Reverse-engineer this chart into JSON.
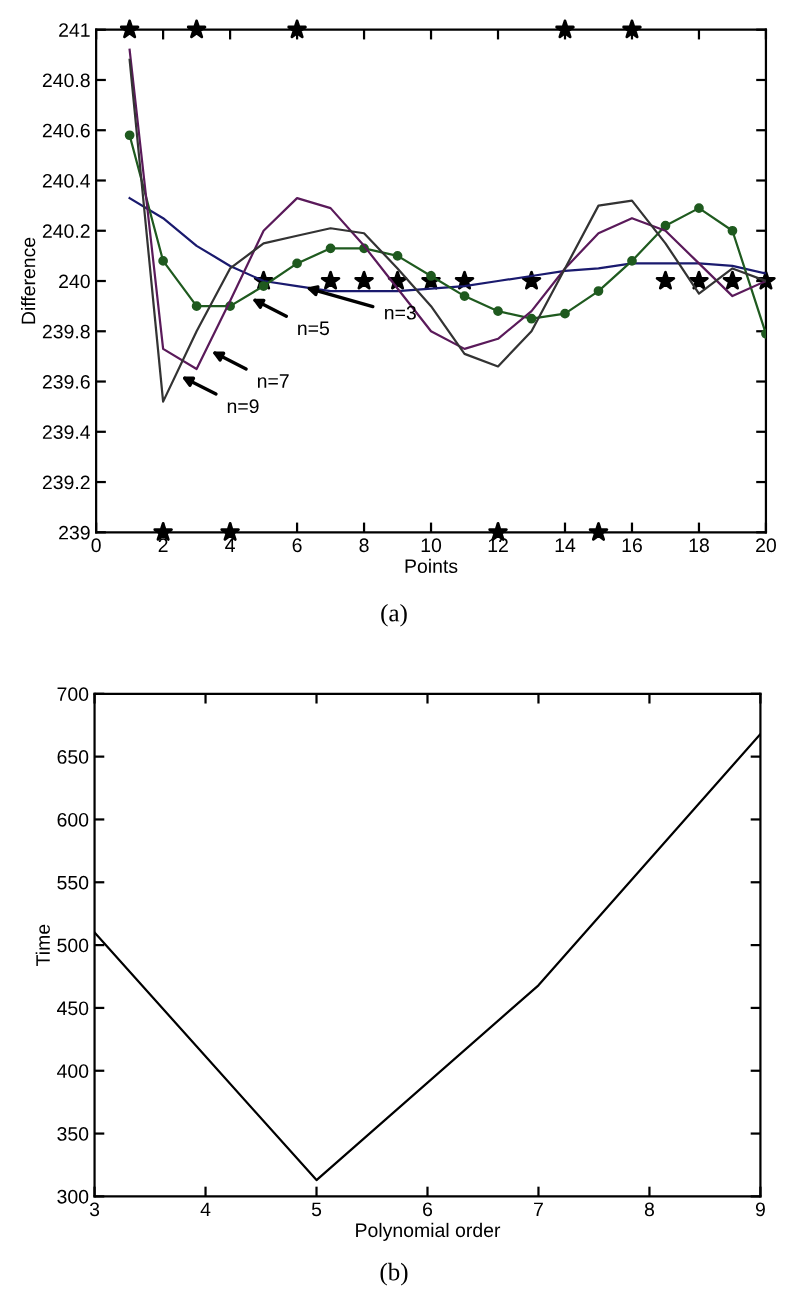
{
  "chart_data": [
    {
      "type": "line",
      "xlabel": "Points",
      "ylabel": "Difference",
      "xlim": [
        0,
        20
      ],
      "ylim": [
        239,
        241
      ],
      "xticks": [
        0,
        2,
        4,
        6,
        8,
        10,
        12,
        14,
        16,
        18,
        {
          "value": 20,
          "label": "20"
        }
      ],
      "yticks": [
        239,
        239.2,
        239.4,
        239.6,
        239.8,
        240,
        240.2,
        240.4,
        240.6,
        240.8,
        241
      ],
      "grid": false,
      "legend": false,
      "series": [
        {
          "type": "scatter",
          "color": "#000000",
          "marker": "star",
          "x": [
            1,
            3,
            6,
            14,
            16,
            2,
            4,
            12,
            15,
            5,
            7,
            8,
            9,
            10,
            11,
            13,
            17,
            18,
            19,
            20
          ],
          "values": [
            241,
            241,
            241,
            241,
            241,
            239,
            239,
            239,
            239,
            240,
            240,
            240,
            240,
            240,
            240,
            240,
            240,
            240,
            240,
            240
          ]
        },
        {
          "color": "#1a1a6e",
          "marker": "none",
          "x": [
            1,
            2,
            3,
            4,
            5,
            6,
            7,
            8,
            9,
            10,
            11,
            12,
            13,
            14,
            15,
            16,
            17,
            18,
            19,
            20
          ],
          "values": [
            240.33,
            240.25,
            240.14,
            240.06,
            240.0,
            239.98,
            239.96,
            239.96,
            239.96,
            239.97,
            239.98,
            240.0,
            240.02,
            240.04,
            240.05,
            240.07,
            240.07,
            240.07,
            240.06,
            240.03
          ]
        },
        {
          "color": "#1f5a1f",
          "marker": "circle",
          "x": [
            1,
            2,
            3,
            4,
            5,
            6,
            7,
            8,
            9,
            10,
            11,
            12,
            13,
            14,
            15,
            16,
            17,
            18,
            19,
            20
          ],
          "values": [
            240.58,
            240.08,
            239.9,
            239.9,
            239.98,
            240.07,
            240.13,
            240.13,
            240.1,
            240.02,
            239.94,
            239.88,
            239.85,
            239.87,
            239.96,
            240.08,
            240.22,
            240.29,
            240.2,
            239.79
          ]
        },
        {
          "color": "#5a1a5a",
          "marker": "none",
          "x": [
            1,
            2,
            3,
            4,
            5,
            6,
            7,
            8,
            9,
            10,
            11,
            12,
            13,
            14,
            15,
            16,
            17,
            18,
            19,
            20
          ],
          "values": [
            240.92,
            239.73,
            239.65,
            239.92,
            240.2,
            240.33,
            240.29,
            240.14,
            239.97,
            239.8,
            239.73,
            239.77,
            239.88,
            240.05,
            240.19,
            240.25,
            240.2,
            240.07,
            239.94,
            240.0
          ]
        },
        {
          "color": "#333333",
          "marker": "none",
          "x": [
            1,
            2,
            3,
            4,
            5,
            6,
            7,
            8,
            9,
            10,
            11,
            12,
            13,
            14,
            15,
            16,
            17,
            18,
            19,
            20
          ],
          "values": [
            240.88,
            239.52,
            239.8,
            240.05,
            240.15,
            240.18,
            240.21,
            240.19,
            240.05,
            239.9,
            239.71,
            239.66,
            239.8,
            240.05,
            240.3,
            240.32,
            240.15,
            239.95,
            240.05,
            240.0
          ]
        }
      ],
      "annotations": [
        {
          "text": "n=3",
          "x": 6.1,
          "y": 239.98
        },
        {
          "text": "n=5",
          "x": 4.5,
          "y": 239.94
        },
        {
          "text": "n=7",
          "x": 3.3,
          "y": 239.73
        },
        {
          "text": "n=9",
          "x": 2.4,
          "y": 239.63
        },
        "(a)"
      ]
    },
    {
      "type": "line",
      "xlabel": "Polynomial order",
      "ylabel": "Time",
      "xlim": [
        3,
        9
      ],
      "ylim": [
        300,
        700
      ],
      "xticks": [
        3,
        4,
        5,
        6,
        7,
        8,
        9
      ],
      "yticks": [
        300,
        350,
        400,
        450,
        500,
        550,
        600,
        650,
        700
      ],
      "grid": false,
      "legend": false,
      "series": [
        {
          "color": "#000000",
          "marker": "none",
          "x": [
            3,
            5,
            7,
            9
          ],
          "values": [
            510,
            313,
            468,
            668
          ]
        }
      ],
      "annotations": [
        "(b)"
      ]
    }
  ]
}
